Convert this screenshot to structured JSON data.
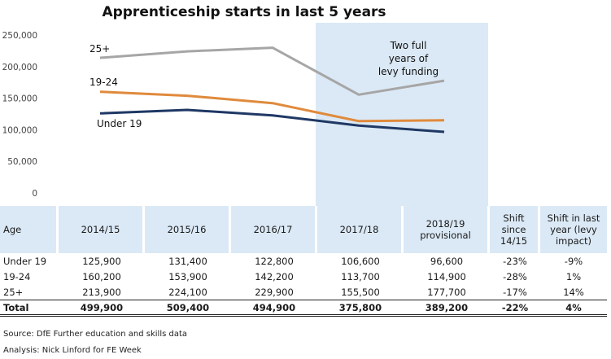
{
  "chart_data": {
    "type": "line",
    "title": "Apprenticeship starts in last 5 years",
    "categories": [
      "2014/15",
      "2015/16",
      "2016/17",
      "2017/18",
      "2018/19 provisional"
    ],
    "series": [
      {
        "name": "25+",
        "values": [
          213900,
          224100,
          229900,
          155500,
          177700
        ],
        "color": "#a6a6a6"
      },
      {
        "name": "19-24",
        "values": [
          160200,
          153900,
          142200,
          113700,
          114900
        ],
        "color": "#e08a3c"
      },
      {
        "name": "Under 19",
        "values": [
          125900,
          131400,
          122800,
          106600,
          96600
        ],
        "color": "#1f3864"
      }
    ],
    "ylim": [
      0,
      250000
    ],
    "yticks": [
      "250,000",
      "200,000",
      "150,000",
      "100,000",
      "50,000",
      "0"
    ],
    "ytick_values": [
      250000,
      200000,
      150000,
      100000,
      50000,
      0
    ],
    "grid": false,
    "highlight_note": [
      "Two full",
      "years of",
      "levy funding"
    ],
    "highlight_color": "#dbe9f6"
  },
  "table": {
    "headers": [
      "Age",
      "2014/15",
      "2015/16",
      "2016/17",
      "2017/18",
      "2018/19 provisional",
      "Shift since 14/15",
      "Shift in last year (levy impact)"
    ],
    "rows": [
      [
        "Under 19",
        "125,900",
        "131,400",
        "122,800",
        "106,600",
        "96,600",
        "-23%",
        "-9%"
      ],
      [
        "19-24",
        "160,200",
        "153,900",
        "142,200",
        "113,700",
        "114,900",
        "-28%",
        "1%"
      ],
      [
        "25+",
        "213,900",
        "224,100",
        "229,900",
        "155,500",
        "177,700",
        "-17%",
        "14%"
      ]
    ],
    "total": [
      "Total",
      "499,900",
      "509,400",
      "494,900",
      "375,800",
      "389,200",
      "-22%",
      "4%"
    ]
  },
  "sources": {
    "source": "Source: DfE Further education and skills data",
    "analysis": "Analysis: Nick Linford for FE Week"
  }
}
